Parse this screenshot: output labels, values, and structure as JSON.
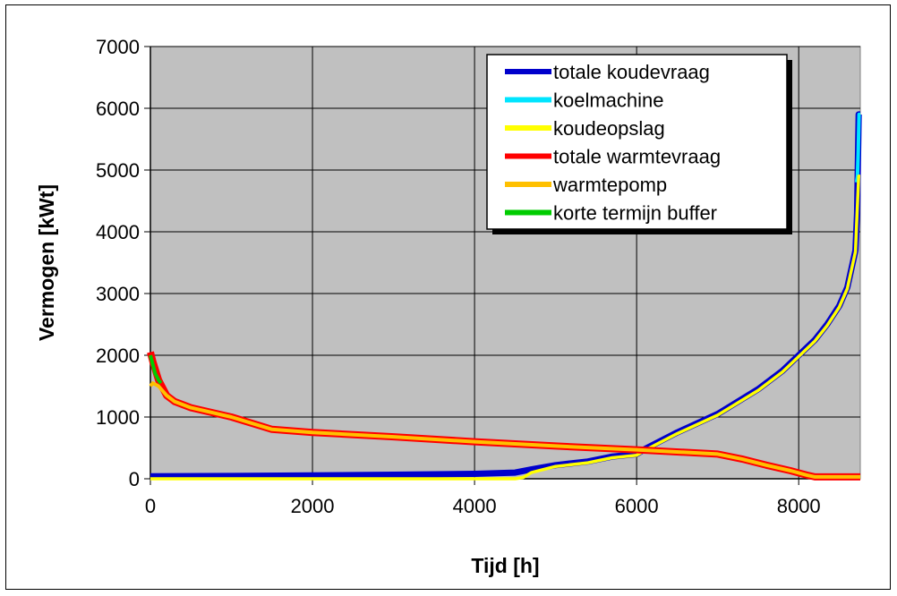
{
  "chart_data": {
    "type": "line",
    "title": "",
    "xlabel": "Tijd [h]",
    "ylabel": "Vermogen [kWt]",
    "xlim": [
      0,
      8760
    ],
    "ylim": [
      0,
      7000
    ],
    "xticks": [
      0,
      2000,
      4000,
      6000,
      8000
    ],
    "yticks": [
      0,
      1000,
      2000,
      3000,
      4000,
      5000,
      6000,
      7000
    ],
    "grid": true,
    "plot_background": "#c0c0c0",
    "legend_position": "top-right",
    "series": [
      {
        "name": "totale koudevraag",
        "color": "#0000cc",
        "x": [
          0,
          1000,
          2000,
          3000,
          4000,
          4500,
          4700,
          5000,
          5400,
          5700,
          6000,
          6100,
          6500,
          7000,
          7500,
          7800,
          8000,
          8200,
          8350,
          8500,
          8600,
          8700,
          8720,
          8740,
          8760
        ],
        "y": [
          40,
          45,
          55,
          65,
          80,
          100,
          150,
          220,
          280,
          360,
          400,
          480,
          750,
          1050,
          1450,
          1750,
          2000,
          2250,
          2500,
          2800,
          3100,
          3700,
          4300,
          5900,
          5900
        ]
      },
      {
        "name": "koelmachine",
        "color": "#00e5ff",
        "x": [
          8715,
          8725,
          8735,
          8745,
          8760
        ],
        "y": [
          4800,
          4900,
          5300,
          5900,
          5900
        ]
      },
      {
        "name": "koudeopslag",
        "color": "#ffff00",
        "x": [
          0,
          1000,
          2000,
          3000,
          4000,
          4500,
          4600,
          4700,
          5000,
          5400,
          5700,
          6000,
          6100,
          6500,
          7000,
          7500,
          7800,
          8000,
          8200,
          8350,
          8500,
          8600,
          8700,
          8720,
          8740,
          8760
        ],
        "y": [
          0,
          0,
          0,
          0,
          0,
          0,
          20,
          100,
          200,
          260,
          340,
          380,
          460,
          730,
          1030,
          1430,
          1730,
          1980,
          2230,
          2480,
          2780,
          3080,
          3680,
          4300,
          4900,
          4900
        ]
      },
      {
        "name": "totale warmtevraag",
        "color": "#ff0000",
        "x": [
          0,
          30,
          100,
          200,
          300,
          500,
          1000,
          1500,
          2000,
          3000,
          4000,
          5000,
          6000,
          7000,
          7300,
          7600,
          7900,
          8100,
          8200,
          8760
        ],
        "y": [
          2050,
          1900,
          1600,
          1350,
          1250,
          1150,
          1000,
          800,
          750,
          680,
          600,
          530,
          470,
          400,
          320,
          220,
          130,
          60,
          30,
          30
        ]
      },
      {
        "name": "warmtepomp",
        "color": "#ffc000",
        "x": [
          0,
          30,
          100,
          200,
          300,
          500,
          1000,
          1500,
          2000,
          3000,
          4000,
          5000,
          6000,
          7000,
          7300,
          7600,
          7900,
          8100,
          8200,
          8760
        ],
        "y": [
          1500,
          1550,
          1500,
          1350,
          1250,
          1150,
          1000,
          800,
          750,
          680,
          600,
          530,
          470,
          400,
          320,
          220,
          130,
          60,
          30,
          30
        ]
      },
      {
        "name": "korte termijn buffer",
        "color": "#00cc00",
        "x": [
          0,
          30,
          60,
          100,
          130
        ],
        "y": [
          2000,
          1850,
          1700,
          1600,
          1550
        ]
      }
    ]
  }
}
